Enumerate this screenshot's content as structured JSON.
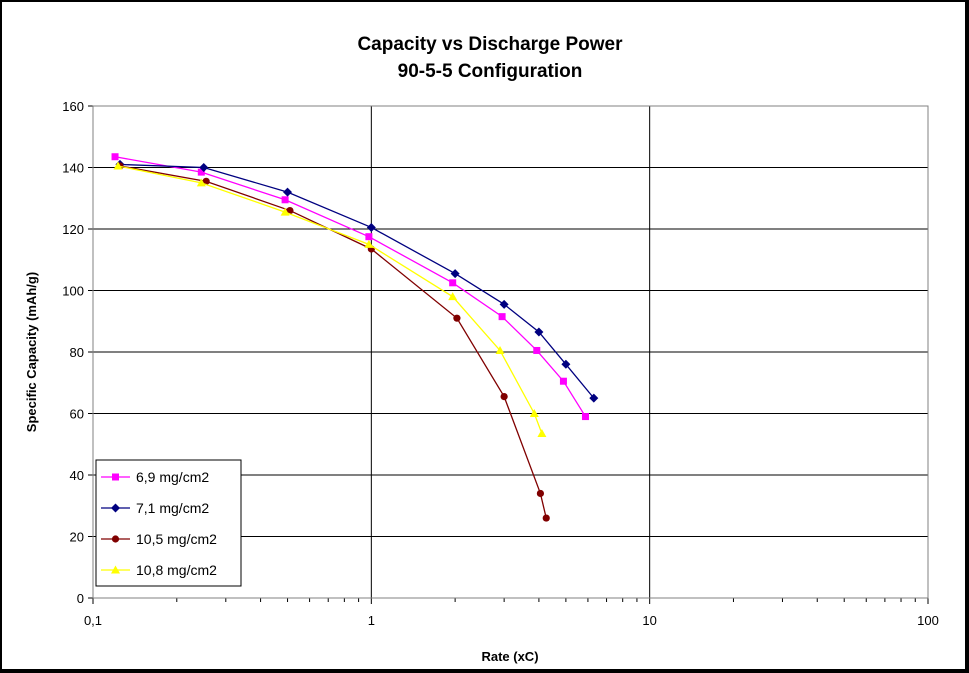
{
  "chart_data": {
    "type": "line",
    "title": "Capacity vs Discharge Power",
    "subtitle": "90-5-5 Configuration",
    "xlabel": "Rate (xC)",
    "ylabel": "Specific Capacity (mAh/g)",
    "x_scale": "log",
    "xlim": [
      0.1,
      100
    ],
    "ylim": [
      0,
      160
    ],
    "x_ticks": [
      "0,1",
      "1",
      "10",
      "100"
    ],
    "x_tick_values": [
      0.1,
      1,
      10,
      100
    ],
    "y_ticks": [
      "0",
      "20",
      "40",
      "60",
      "80",
      "100",
      "120",
      "140",
      "160"
    ],
    "y_tick_values": [
      0,
      20,
      40,
      60,
      80,
      100,
      120,
      140,
      160
    ],
    "grid": true,
    "legend_position": "bottom-left",
    "series": [
      {
        "name": "6,9 mg/cm2",
        "color": "#FF00FF",
        "marker": "square",
        "x": [
          0.12,
          0.245,
          0.49,
          0.98,
          1.96,
          2.95,
          3.93,
          4.9,
          5.88
        ],
        "y": [
          143.5,
          138.5,
          129.5,
          117.5,
          102.5,
          91.5,
          80.5,
          70.5,
          59
        ]
      },
      {
        "name": "7,1 mg/cm2",
        "color": "#000080",
        "marker": "diamond",
        "x": [
          0.125,
          0.25,
          0.5,
          1.0,
          2.0,
          3.0,
          4.0,
          5.0,
          6.3
        ],
        "y": [
          141,
          140,
          132,
          120.5,
          105.5,
          95.5,
          86.5,
          76,
          65
        ]
      },
      {
        "name": "10,5 mg/cm2",
        "color": "#800000",
        "marker": "circle",
        "x": [
          0.125,
          0.255,
          0.51,
          1.0,
          2.03,
          3.0,
          4.05,
          4.25
        ],
        "y": [
          140.5,
          135.5,
          126,
          113.5,
          91,
          65.5,
          34,
          26
        ]
      },
      {
        "name": "10,8 mg/cm2",
        "color": "#FFFF00",
        "marker": "triangle",
        "x": [
          0.123,
          0.245,
          0.49,
          0.98,
          1.96,
          2.9,
          3.85,
          4.1
        ],
        "y": [
          140.5,
          135,
          125.5,
          115,
          98,
          80.5,
          60,
          53.5
        ]
      }
    ]
  }
}
